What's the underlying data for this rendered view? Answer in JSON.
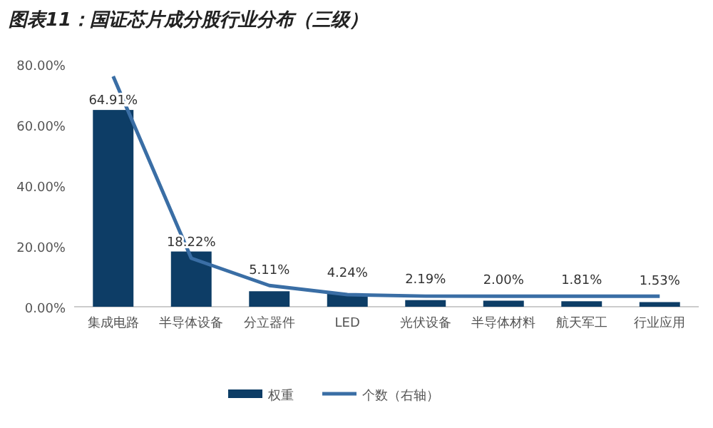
{
  "chart_data": {
    "type": "bar",
    "title": "图表11：国证芯片成分股行业分布（三级）",
    "categories": [
      "集成电路",
      "半导体设备",
      "分立器件",
      "LED",
      "光伏设备",
      "半导体材料",
      "航天军工",
      "行业应用"
    ],
    "series": [
      {
        "name": "权重",
        "color": "#0d3d66",
        "values": [
          64.91,
          18.22,
          5.11,
          4.24,
          2.19,
          2.0,
          1.81,
          1.53
        ],
        "value_labels": [
          "64.91%",
          "18.22%",
          "5.11%",
          "4.24%",
          "2.19%",
          "2.00%",
          "1.81%",
          "1.53%"
        ]
      },
      {
        "name": "个数（右轴）",
        "type": "line",
        "color": "#3a6ea5",
        "values": [
          76,
          16,
          7,
          4,
          3.5,
          3.5,
          3.5,
          3.5
        ]
      }
    ],
    "ylim": [
      0,
      80
    ],
    "yticks": [
      {
        "value": 0,
        "label": "0.00%"
      },
      {
        "value": 20,
        "label": "20.00%"
      },
      {
        "value": 40,
        "label": "40.00%"
      },
      {
        "value": 60,
        "label": "60.00%"
      },
      {
        "value": 80,
        "label": "80.00%"
      }
    ],
    "legend": "bottom",
    "grid": false
  }
}
